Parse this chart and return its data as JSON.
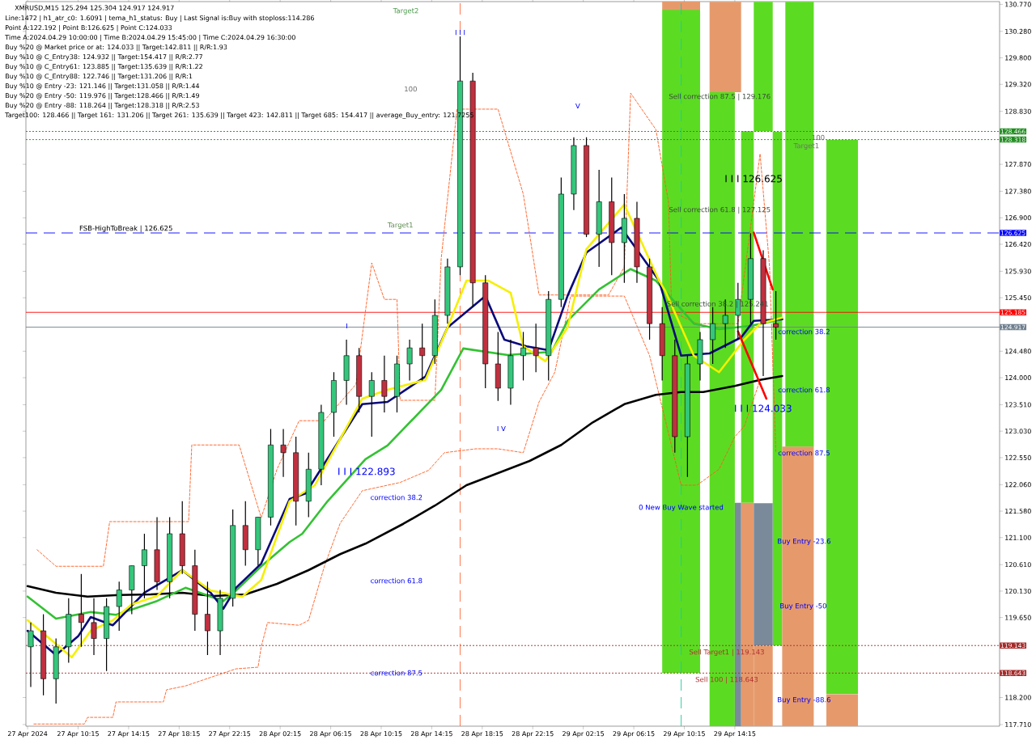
{
  "chart_data": {
    "type": "candlestick",
    "title": "XMRUSD,M15  125.294 125.304 124.917 124.917",
    "xlim": [
      "2024-04-27T06:07",
      "2024-04-30T11:13"
    ],
    "ylim": [
      117.68,
      130.82
    ],
    "xticks": [
      {
        "value": "2024-04-27T06:15",
        "label": "27 Apr 2024"
      },
      {
        "value": "2024-04-27T10:15",
        "label": "27 Apr 10:15"
      },
      {
        "value": "2024-04-27T14:15",
        "label": "27 Apr 14:15"
      },
      {
        "value": "2024-04-27T18:15",
        "label": "27 Apr 18:15"
      },
      {
        "value": "2024-04-27T22:15",
        "label": "27 Apr 22:15"
      },
      {
        "value": "2024-04-28T02:15",
        "label": "28 Apr 02:15"
      },
      {
        "value": "2024-04-28T06:15",
        "label": "28 Apr 06:15"
      },
      {
        "value": "2024-04-28T10:15",
        "label": "28 Apr 10:15"
      },
      {
        "value": "2024-04-28T14:15",
        "label": "28 Apr 14:15"
      },
      {
        "value": "2024-04-28T18:15",
        "label": "28 Apr 18:15"
      },
      {
        "value": "2024-04-28T22:15",
        "label": "28 Apr 22:15"
      },
      {
        "value": "2024-04-29T02:15",
        "label": "29 Apr 02:15"
      },
      {
        "value": "2024-04-29T06:15",
        "label": "29 Apr 06:15"
      },
      {
        "value": "2024-04-29T10:15",
        "label": "29 Apr 10:15"
      },
      {
        "value": "2024-04-29T14:15",
        "label": "29 Apr 14:15"
      }
    ],
    "yticks": [
      {
        "value": 130.77,
        "label": "130.770"
      },
      {
        "value": 130.28,
        "label": "130.280"
      },
      {
        "value": 129.8,
        "label": "129.800"
      },
      {
        "value": 129.32,
        "label": "129.320"
      },
      {
        "value": 128.83,
        "label": "128.830"
      },
      {
        "value": 127.87,
        "label": "127.870"
      },
      {
        "value": 127.38,
        "label": "127.380"
      },
      {
        "value": 126.9,
        "label": "126.900"
      },
      {
        "value": 126.42,
        "label": "126.420"
      },
      {
        "value": 125.93,
        "label": "125.930"
      },
      {
        "value": 125.45,
        "label": "125.450"
      },
      {
        "value": 124.48,
        "label": "124.480"
      },
      {
        "value": 124.0,
        "label": "124.000"
      },
      {
        "value": 123.51,
        "label": "123.510"
      },
      {
        "value": 123.03,
        "label": "123.030"
      },
      {
        "value": 122.55,
        "label": "122.550"
      },
      {
        "value": 122.06,
        "label": "122.060"
      },
      {
        "value": 121.58,
        "label": "121.580"
      },
      {
        "value": 121.1,
        "label": "121.100"
      },
      {
        "value": 120.61,
        "label": "120.610"
      },
      {
        "value": 120.13,
        "label": "120.130"
      },
      {
        "value": 119.65,
        "label": "119.650"
      },
      {
        "value": 118.2,
        "label": "118.200"
      },
      {
        "value": 117.71,
        "label": "117.710"
      }
    ],
    "x": [
      "2024-04-27T06:30",
      "2024-04-27T07:30",
      "2024-04-27T08:30",
      "2024-04-27T09:30",
      "2024-04-27T10:30",
      "2024-04-27T11:30",
      "2024-04-27T12:30",
      "2024-04-27T13:30",
      "2024-04-27T14:30",
      "2024-04-27T15:30",
      "2024-04-27T16:30",
      "2024-04-27T17:30",
      "2024-04-27T18:30",
      "2024-04-27T19:30",
      "2024-04-27T20:30",
      "2024-04-27T21:30",
      "2024-04-27T22:30",
      "2024-04-27T23:30",
      "2024-04-28T00:30",
      "2024-04-28T01:30",
      "2024-04-28T02:30",
      "2024-04-28T03:30",
      "2024-04-28T04:30",
      "2024-04-28T05:30",
      "2024-04-28T06:30",
      "2024-04-28T07:30",
      "2024-04-28T08:30",
      "2024-04-28T09:30",
      "2024-04-28T10:30",
      "2024-04-28T11:30",
      "2024-04-28T12:30",
      "2024-04-28T13:30",
      "2024-04-28T14:30",
      "2024-04-28T15:30",
      "2024-04-28T16:30",
      "2024-04-28T17:30",
      "2024-04-28T18:30",
      "2024-04-28T19:30",
      "2024-04-28T20:30",
      "2024-04-28T21:30",
      "2024-04-28T22:30",
      "2024-04-28T23:30",
      "2024-04-29T00:30",
      "2024-04-29T01:30",
      "2024-04-29T02:30",
      "2024-04-29T03:30",
      "2024-04-29T04:30",
      "2024-04-29T05:30",
      "2024-04-29T06:30",
      "2024-04-29T07:30",
      "2024-04-29T08:30",
      "2024-04-29T09:30",
      "2024-04-29T10:30",
      "2024-04-29T11:30",
      "2024-04-29T12:30",
      "2024-04-29T13:30",
      "2024-04-29T14:30",
      "2024-04-29T15:30",
      "2024-04-29T16:30",
      "2024-04-29T17:30"
    ],
    "ohlc": [
      [
        119.12,
        119.56,
        118.39,
        119.41
      ],
      [
        119.41,
        119.71,
        118.24,
        118.54
      ],
      [
        118.54,
        119.27,
        118.09,
        119.12
      ],
      [
        119.12,
        120.0,
        118.83,
        119.71
      ],
      [
        119.71,
        120.44,
        119.12,
        119.56
      ],
      [
        119.56,
        120.0,
        118.97,
        119.27
      ],
      [
        119.27,
        120.0,
        118.68,
        119.85
      ],
      [
        119.85,
        120.3,
        119.41,
        120.15
      ],
      [
        120.15,
        120.59,
        119.71,
        120.59
      ],
      [
        120.59,
        121.17,
        120.0,
        120.88
      ],
      [
        120.88,
        121.47,
        120.15,
        120.3
      ],
      [
        120.3,
        121.47,
        120.0,
        121.17
      ],
      [
        121.17,
        121.76,
        120.44,
        120.59
      ],
      [
        120.59,
        120.88,
        119.41,
        119.71
      ],
      [
        119.71,
        120.3,
        118.97,
        119.41
      ],
      [
        119.41,
        120.15,
        118.97,
        120.0
      ],
      [
        120.0,
        121.61,
        119.85,
        121.32
      ],
      [
        121.32,
        121.76,
        120.59,
        120.88
      ],
      [
        120.88,
        121.47,
        120.59,
        121.47
      ],
      [
        121.47,
        123.07,
        121.32,
        122.78
      ],
      [
        122.78,
        123.07,
        122.2,
        122.64
      ],
      [
        122.64,
        122.93,
        121.32,
        121.76
      ],
      [
        121.76,
        122.64,
        121.47,
        122.34
      ],
      [
        122.34,
        123.51,
        122.05,
        123.37
      ],
      [
        123.37,
        124.1,
        122.93,
        123.95
      ],
      [
        123.95,
        124.69,
        123.51,
        124.4
      ],
      [
        124.4,
        124.54,
        123.37,
        123.66
      ],
      [
        123.66,
        124.1,
        122.93,
        123.95
      ],
      [
        123.95,
        124.4,
        123.37,
        123.66
      ],
      [
        123.66,
        124.4,
        123.37,
        124.25
      ],
      [
        124.25,
        124.69,
        123.95,
        124.54
      ],
      [
        124.54,
        124.98,
        123.95,
        124.4
      ],
      [
        124.4,
        125.42,
        124.25,
        125.13
      ],
      [
        125.13,
        126.16,
        124.98,
        126.01
      ],
      [
        126.01,
        130.19,
        125.86,
        129.38
      ],
      [
        129.38,
        129.53,
        125.28,
        125.72
      ],
      [
        125.72,
        125.86,
        123.81,
        124.25
      ],
      [
        124.25,
        124.83,
        123.58,
        123.81
      ],
      [
        123.81,
        124.69,
        123.51,
        124.4
      ],
      [
        124.4,
        124.83,
        123.95,
        124.54
      ],
      [
        124.54,
        124.98,
        124.1,
        124.4
      ],
      [
        124.4,
        125.57,
        123.95,
        125.42
      ],
      [
        125.42,
        127.63,
        125.28,
        127.33
      ],
      [
        127.33,
        128.36,
        127.04,
        128.21
      ],
      [
        128.21,
        128.36,
        126.55,
        126.6
      ],
      [
        126.6,
        127.77,
        126.01,
        127.19
      ],
      [
        127.19,
        127.63,
        125.86,
        126.45
      ],
      [
        126.45,
        127.33,
        125.72,
        126.89
      ],
      [
        126.89,
        127.19,
        125.72,
        126.01
      ],
      [
        126.01,
        126.16,
        124.69,
        124.98
      ],
      [
        124.98,
        125.28,
        123.95,
        124.4
      ],
      [
        124.4,
        124.69,
        122.64,
        122.93
      ],
      [
        122.93,
        124.4,
        122.2,
        124.25
      ],
      [
        124.25,
        124.83,
        123.95,
        124.69
      ],
      [
        124.69,
        125.28,
        124.25,
        124.98
      ],
      [
        124.98,
        125.42,
        124.54,
        125.13
      ],
      [
        125.13,
        125.72,
        124.69,
        125.42
      ],
      [
        125.42,
        126.62,
        124.98,
        126.16
      ],
      [
        126.16,
        126.31,
        124.03,
        124.98
      ],
      [
        124.98,
        125.57,
        124.69,
        124.917
      ]
    ],
    "colors": [
      "#34c77b",
      "#c0303f",
      "#34c77b",
      "#34c77b",
      "#c0303f",
      "#c0303f",
      "#34c77b",
      "#34c77b",
      "#34c77b",
      "#34c77b",
      "#c0303f",
      "#34c77b",
      "#c0303f",
      "#c0303f",
      "#c0303f",
      "#34c77b",
      "#34c77b",
      "#c0303f",
      "#34c77b",
      "#34c77b",
      "#c0303f",
      "#c0303f",
      "#34c77b",
      "#34c77b",
      "#34c77b",
      "#34c77b",
      "#c0303f",
      "#34c77b",
      "#c0303f",
      "#34c77b",
      "#34c77b",
      "#c0303f",
      "#34c77b",
      "#34c77b",
      "#34c77b",
      "#c0303f",
      "#c0303f",
      "#c0303f",
      "#34c77b",
      "#34c77b",
      "#c0303f",
      "#34c77b",
      "#34c77b",
      "#34c77b",
      "#c0303f",
      "#34c77b",
      "#c0303f",
      "#34c77b",
      "#c0303f",
      "#c0303f",
      "#c0303f",
      "#c0303f",
      "#34c77b",
      "#34c77b",
      "#34c77b",
      "#34c77b",
      "#34c77b",
      "#34c77b",
      "#c0303f",
      "#c0303f"
    ],
    "series": [
      {
        "type": "histogram",
        "color": "#5bdc22",
        "bins": [
          "2024-04-29T08:30",
          "2024-04-29T11:30",
          "2024-04-29T12:15",
          "2024-04-29T14:15",
          "2024-04-29T14:45",
          "2024-04-29T15:45",
          "2024-04-29T17:15",
          "2024-04-29T18:00",
          "2024-04-29T18:15",
          "2024-04-29T20:30",
          "2024-04-29T21:30",
          "2024-04-30T00:00"
        ],
        "base": [
          118.643,
          null,
          117.68,
          null,
          121.73,
          128.466,
          119.143,
          null,
          122.746,
          null,
          118.264
        ],
        "values": [
          12.03,
          null,
          11.5,
          null,
          6.74,
          2.35,
          9.32,
          null,
          8.07,
          null,
          10.05
        ]
      },
      {
        "type": "histogram",
        "color": "#e69a6c",
        "bins": [
          "2024-04-29T08:30",
          "2024-04-29T11:30",
          "2024-04-29T12:15",
          "2024-04-29T14:45",
          "2024-04-29T15:45",
          "2024-04-29T17:15",
          "2024-04-29T18:00",
          "2024-04-29T20:30",
          "2024-04-29T21:30",
          "2024-04-30T00:00"
        ],
        "base": [
          130.67,
          null,
          129.176,
          117.68,
          117.68,
          null,
          117.68,
          null,
          117.68
        ],
        "values": [
          0.15,
          null,
          1.64,
          4.05,
          1.46,
          null,
          5.07,
          null,
          0.58
        ]
      },
      {
        "type": "histogram",
        "color": "#7b8a9a",
        "bins": [
          "2024-04-29T14:15",
          "2024-04-29T14:45",
          "2024-04-29T15:45",
          "2024-04-29T17:15"
        ],
        "base": [
          117.68,
          null,
          119.143
        ],
        "values": [
          4.05,
          null,
          2.58
        ]
      },
      {
        "type": "line",
        "color": "#ff5a1e",
        "line_style": "dashed",
        "x": [
          "2024-04-27T07:00",
          "2024-04-27T08:30",
          "2024-04-27T12:15",
          "2024-04-27T12:45",
          "2024-04-27T19:00",
          "2024-04-27T19:15",
          "2024-04-27T23:00",
          "2024-04-28T00:45",
          "2024-04-28T02:00",
          "2024-04-28T03:45",
          "2024-04-28T05:45",
          "2024-04-28T08:15",
          "2024-04-28T09:30",
          "2024-04-28T10:30",
          "2024-04-28T11:30",
          "2024-04-28T11:45",
          "2024-04-28T14:30",
          "2024-04-28T15:00",
          "2024-04-28T16:15",
          "2024-04-28T19:30",
          "2024-04-28T21:30",
          "2024-04-28T22:45",
          "2024-04-29T04:15",
          "2024-04-29T05:30",
          "2024-04-29T06:00",
          "2024-04-29T08:00",
          "2024-04-29T09:00",
          "2024-04-29T09:15",
          "2024-04-29T11:15",
          "2024-04-29T14:30",
          "2024-04-29T16:15",
          "2024-04-29T17:00",
          "2024-04-29T17:30"
        ],
        "values": [
          120.88,
          120.58,
          120.58,
          121.39,
          121.39,
          122.78,
          122.78,
          121.46,
          122.34,
          123.22,
          123.22,
          123.88,
          126.08,
          125.42,
          125.42,
          123.59,
          123.59,
          126.16,
          128.87,
          128.87,
          127.33,
          125.5,
          125.5,
          126.01,
          129.16,
          128.5,
          127.18,
          125.2,
          124.98,
          124.98,
          128.06,
          126.01,
          122.64
        ]
      },
      {
        "type": "line",
        "color": "#ff5a1e",
        "line_style": "dashed",
        "x": [
          "2024-04-27T06:45",
          "2024-04-27T10:45",
          "2024-04-27T11:00",
          "2024-04-27T13:00",
          "2024-04-27T13:15",
          "2024-04-27T17:00",
          "2024-04-27T17:15",
          "2024-04-27T18:45",
          "2024-04-27T22:45",
          "2024-04-28T00:30",
          "2024-04-28T00:45",
          "2024-04-28T01:15",
          "2024-04-28T03:45",
          "2024-04-28T04:30",
          "2024-04-28T05:45",
          "2024-04-28T07:00",
          "2024-04-28T08:45",
          "2024-04-28T11:45",
          "2024-04-28T14:00",
          "2024-04-28T15:15",
          "2024-04-28T17:45",
          "2024-04-28T19:30",
          "2024-04-28T21:30",
          "2024-04-28T22:45",
          "2024-04-29T00:00",
          "2024-04-29T01:15",
          "2024-04-29T05:30",
          "2024-04-29T07:30",
          "2024-04-29T10:00",
          "2024-04-29T11:15",
          "2024-04-29T13:00",
          "2024-04-29T14:15",
          "2024-04-29T15:00",
          "2024-04-29T15:45",
          "2024-04-29T16:15"
        ],
        "values": [
          117.72,
          117.72,
          117.84,
          117.84,
          118.12,
          118.12,
          118.34,
          118.41,
          118.72,
          118.75,
          119.12,
          119.56,
          119.51,
          119.6,
          120.58,
          121.36,
          121.95,
          122.1,
          122.32,
          122.64,
          122.71,
          122.71,
          122.64,
          123.56,
          124.1,
          125.48,
          125.48,
          124.4,
          122.05,
          122.05,
          122.34,
          122.93,
          123.12,
          123.62,
          123.96
        ]
      },
      {
        "type": "line",
        "color": "#000000",
        "line_style": "solid",
        "x": [
          "2024-04-27T06:15",
          "2024-04-27T08:30",
          "2024-04-27T11:00",
          "2024-04-27T13:30",
          "2024-04-27T16:00",
          "2024-04-27T18:30",
          "2024-04-27T21:00",
          "2024-04-27T23:30",
          "2024-04-28T02:00",
          "2024-04-28T04:30",
          "2024-04-28T07:00",
          "2024-04-28T09:00",
          "2024-04-28T12:00",
          "2024-04-28T14:30",
          "2024-04-28T17:00",
          "2024-04-28T19:30",
          "2024-04-28T22:00",
          "2024-04-29T00:30",
          "2024-04-29T03:00",
          "2024-04-29T05:30",
          "2024-04-29T08:00",
          "2024-04-29T10:00",
          "2024-04-29T11:45",
          "2024-04-29T14:15",
          "2024-04-29T16:15",
          "2024-04-29T18:00"
        ],
        "values": [
          120.22,
          120.1,
          120.03,
          120.06,
          120.07,
          120.1,
          120.04,
          120.07,
          120.26,
          120.51,
          120.8,
          120.99,
          121.35,
          121.68,
          122.05,
          122.27,
          122.49,
          122.78,
          123.19,
          123.52,
          123.69,
          123.74,
          123.74,
          123.85,
          123.96,
          124.03
        ]
      },
      {
        "type": "line",
        "color": "#33c233",
        "line_style": "solid",
        "x": [
          "2024-04-27T06:15",
          "2024-04-27T08:30",
          "2024-04-27T11:15",
          "2024-04-27T13:15",
          "2024-04-27T16:30",
          "2024-04-27T18:45",
          "2024-04-27T21:45",
          "2024-04-27T22:45",
          "2024-04-28T00:45",
          "2024-04-28T03:00",
          "2024-04-28T04:00",
          "2024-04-28T06:00",
          "2024-04-28T09:00",
          "2024-04-28T10:45",
          "2024-04-28T15:00",
          "2024-04-28T16:45",
          "2024-04-28T20:15",
          "2024-04-28T23:45",
          "2024-04-29T01:00",
          "2024-04-29T03:30",
          "2024-04-29T06:00",
          "2024-04-29T08:00",
          "2024-04-29T11:00",
          "2024-04-29T13:00",
          "2024-04-29T15:30",
          "2024-04-29T18:00"
        ],
        "values": [
          120.03,
          119.63,
          119.75,
          119.7,
          119.95,
          120.19,
          119.95,
          120.14,
          120.58,
          121.02,
          121.17,
          121.76,
          122.52,
          122.77,
          123.78,
          124.53,
          124.41,
          124.47,
          125.03,
          125.6,
          125.97,
          125.76,
          124.98,
          124.88,
          124.94,
          125.06
        ]
      },
      {
        "type": "line",
        "color": "#0a0a7a",
        "line_style": "solid",
        "x": [
          "2024-04-27T06:15",
          "2024-04-27T08:30",
          "2024-04-27T10:15",
          "2024-04-27T11:15",
          "2024-04-27T13:00",
          "2024-04-27T15:30",
          "2024-04-27T18:30",
          "2024-04-27T20:45",
          "2024-04-27T21:45",
          "2024-04-27T22:45",
          "2024-04-28T00:45",
          "2024-04-28T03:00",
          "2024-04-28T04:15",
          "2024-04-28T06:00",
          "2024-04-28T08:45",
          "2024-04-28T10:45",
          "2024-04-28T13:45",
          "2024-04-28T15:30",
          "2024-04-28T16:45",
          "2024-04-28T18:30",
          "2024-04-28T20:00",
          "2024-04-28T21:45",
          "2024-04-28T23:30",
          "2024-04-29T01:00",
          "2024-04-29T02:30",
          "2024-04-29T05:15",
          "2024-04-29T06:30",
          "2024-04-29T08:15",
          "2024-04-29T10:00",
          "2024-04-29T12:15",
          "2024-04-29T14:45",
          "2024-04-29T15:45",
          "2024-04-29T18:00"
        ],
        "values": [
          119.41,
          118.97,
          119.31,
          119.66,
          119.51,
          120.1,
          120.51,
          120.1,
          119.81,
          120.19,
          120.63,
          121.8,
          121.9,
          122.53,
          123.52,
          123.56,
          124.02,
          124.91,
          null,
          125.48,
          124.69,
          124.57,
          124.5,
          125.48,
          126.27,
          126.72,
          null,
          125.76,
          124.4,
          124.44,
          124.73,
          125.03,
          125.06
        ]
      },
      {
        "type": "line",
        "color": "#f5f000",
        "line_style": "solid",
        "x": [
          "2024-04-27T06:15",
          "2024-04-27T08:15",
          "2024-04-27T09:45",
          "2024-04-27T11:15",
          "2024-04-27T13:00",
          "2024-04-27T14:30",
          "2024-04-27T16:30",
          "2024-04-27T18:30",
          "2024-04-27T20:45",
          "2024-04-27T23:15",
          "2024-04-28T00:45",
          "2024-04-28T02:00",
          "2024-04-28T03:00",
          "2024-04-28T05:00",
          "2024-04-28T08:45",
          "2024-04-28T10:45",
          "2024-04-28T13:45",
          "2024-04-28T15:30",
          "2024-04-28T17:00",
          "2024-04-28T18:45",
          "2024-04-28T20:30",
          "2024-04-28T21:30",
          "2024-04-28T23:15",
          "2024-04-29T01:00",
          "2024-04-29T02:30",
          "2024-04-29T05:30",
          "2024-04-29T06:30",
          "2024-04-29T08:15",
          "2024-04-29T08:45",
          "2024-04-29T11:00",
          "2024-04-29T13:00",
          "2024-04-29T15:00",
          "2024-04-29T16:15",
          "2024-04-29T18:00"
        ],
        "values": [
          119.6,
          119.22,
          118.93,
          119.41,
          119.6,
          119.89,
          120.04,
          120.51,
          120.14,
          120.03,
          120.33,
          121.13,
          121.76,
          122.05,
          123.62,
          123.78,
          123.96,
          124.91,
          125.76,
          125.76,
          125.54,
          124.57,
          124.3,
          124.91,
          126.33,
          127.14,
          null,
          125.76,
          125.57,
          124.4,
          124.1,
          124.69,
          124.98,
          125.09
        ]
      },
      {
        "type": "line",
        "color": "#ff0000",
        "line_style": "solid",
        "x": [
          "2024-04-29T15:45",
          "2024-04-29T17:15"
        ],
        "values": [
          126.63,
          125.6
        ]
      },
      {
        "type": "line",
        "color": "#ff0000",
        "line_style": "solid",
        "x": [
          "2024-04-29T14:30",
          "2024-04-29T16:45"
        ],
        "values": [
          124.84,
          123.62
        ]
      }
    ],
    "ref_lines": [
      {
        "axis": "y",
        "value": 128.466,
        "label": "128.466",
        "color": "#1e8c1e",
        "line_style": "dotted"
      },
      {
        "axis": "y",
        "value": 128.318,
        "label": "128.318",
        "color": "#1e8c1e",
        "line_style": "dotted"
      },
      {
        "axis": "y",
        "value": 126.625,
        "label": "126.625",
        "color": "#0000ff",
        "line_style": "dashed"
      },
      {
        "axis": "y",
        "value": 125.185,
        "label": "125.185",
        "color": "#ff0000",
        "line_style": "solid"
      },
      {
        "axis": "y",
        "value": 124.917,
        "label": "124.917",
        "color": "#708090",
        "line_style": "solid"
      },
      {
        "axis": "y",
        "value": 119.143,
        "label": "119.143",
        "color": "#a52a2a",
        "line_style": "dotted"
      },
      {
        "axis": "y",
        "value": 118.643,
        "label": "118.643",
        "color": "#a52a2a",
        "line_style": "dotted"
      },
      {
        "axis": "x",
        "value": "2024-04-28T16:30",
        "color": "#ff6a3d",
        "line_style": "dashed"
      },
      {
        "axis": "x",
        "value": "2024-04-29T10:00",
        "color": "#20c8a0",
        "line_style": "dashed"
      }
    ],
    "annotations": [
      "Line:1472 | h1_atr_c0: 1.6091 | tema_h1_status: Buy | Last Signal is:Buy with stoploss:114.286",
      "Point A:122.192 | Point B:126.625 | Point C:124.033",
      "Time A:2024.04.29 10:00:00 | Time B:2024.04.29 15:45:00 | Time C:2024.04.29 16:30:00",
      "Buy %20 @ Market price or at: 124.033 || Target:142.811 || R/R:1.93",
      "Buy %10 @ C_Entry38: 124.932 || Target:154.417 || R/R:2.77",
      "Buy %10 @ C_Entry61: 123.885 || Target:135.639 || R/R:1.22",
      "Buy %10 @ C_Entry88: 122.746 || Target:131.206 || R/R:1",
      "Buy %10 @ Entry -23: 121.146 || Target:131.058 || R/R:1.44",
      "Buy %20 @ Entry -50: 119.976 || Target:128.466 || R/R:1.49",
      "Buy %20 @ Entry -88: 118.264 || Target:128.318 || R/R:2.53",
      "Target100: 128.466 || Target 161: 131.206 || Target 261: 135.639 || Target 423: 142.811 || Target 685: 154.417 || average_Buy_entry: 121.7255",
      "Target2",
      {
        "text": "I I I",
        "x": "2024-04-28T16:30",
        "y": 130.19
      },
      "100",
      "V",
      "Target1",
      "FSB-HighToBreak | 126.625",
      "I",
      "I I I 122.893",
      "I V",
      "correction 38.2",
      "correction 61.8",
      "correction 87.5",
      "Sell correction 87.5 | 129.176",
      "Sell correction 61.8 | 127.125",
      {
        "text": "Sell correction 38.2 | 125.241",
        "x": "2024-04-29T08:45",
        "y": 125.241
      },
      "I I I 126.625",
      "100",
      "Target1",
      "correction 38.2",
      "correction 61.8",
      "I I I 124.033",
      "correction 87.5",
      "0 New Buy Wave started",
      "Buy Entry -23.6",
      "Buy Entry -50",
      "Buy Entry -88.6",
      "Sell Target1 | 119.143",
      "Sell 100 | 118.643"
    ]
  }
}
